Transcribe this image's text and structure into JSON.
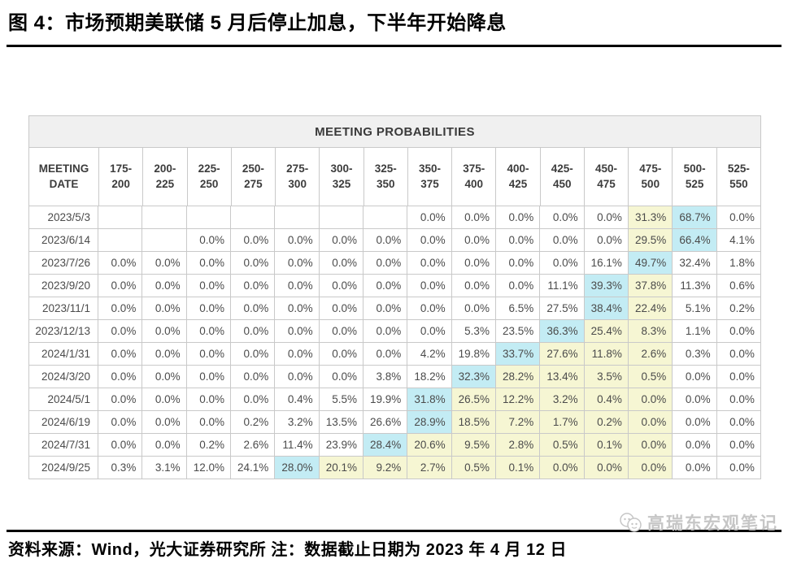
{
  "page": {
    "title": "图 4：市场预期美联储 5 月后停止加息，下半年开始降息",
    "footer": "资料来源：Wind，光大证券研究所 注：数据截止日期为 2023 年 4 月 12 日",
    "watermark": "高瑞东宏观笔记"
  },
  "colors": {
    "blue_highlight": "#c3ecf4",
    "yellow_highlight": "#f6f6d3",
    "table_title_bg": "#f0f0f0",
    "grid_line": "#c9c9c9"
  },
  "chart_data": {
    "type": "table",
    "title": "MEETING PROBABILITIES",
    "columns": [
      "MEETING DATE",
      "175-200",
      "200-225",
      "225-250",
      "250-275",
      "275-300",
      "300-325",
      "325-350",
      "350-375",
      "375-400",
      "400-425",
      "425-450",
      "450-475",
      "475-500",
      "500-525",
      "525-550"
    ],
    "highlight_legend": {
      "blue": "#c3ecf4",
      "yellow": "#f6f6d3"
    },
    "rows": [
      {
        "date": "2023/5/3",
        "values": [
          "",
          "",
          "",
          "",
          "",
          "",
          "",
          "0.0%",
          "0.0%",
          "0.0%",
          "0.0%",
          "0.0%",
          "31.3%",
          "68.7%",
          "0.0%"
        ],
        "blue": 13,
        "yellow": [
          12
        ]
      },
      {
        "date": "2023/6/14",
        "values": [
          "",
          "",
          "0.0%",
          "0.0%",
          "0.0%",
          "0.0%",
          "0.0%",
          "0.0%",
          "0.0%",
          "0.0%",
          "0.0%",
          "0.0%",
          "29.5%",
          "66.4%",
          "4.1%"
        ],
        "blue": 13,
        "yellow": [
          12
        ]
      },
      {
        "date": "2023/7/26",
        "values": [
          "0.0%",
          "0.0%",
          "0.0%",
          "0.0%",
          "0.0%",
          "0.0%",
          "0.0%",
          "0.0%",
          "0.0%",
          "0.0%",
          "0.0%",
          "16.1%",
          "49.7%",
          "32.4%",
          "1.8%"
        ],
        "blue": 12,
        "yellow": []
      },
      {
        "date": "2023/9/20",
        "values": [
          "0.0%",
          "0.0%",
          "0.0%",
          "0.0%",
          "0.0%",
          "0.0%",
          "0.0%",
          "0.0%",
          "0.0%",
          "0.0%",
          "11.1%",
          "39.3%",
          "37.8%",
          "11.3%",
          "0.6%"
        ],
        "blue": 11,
        "yellow": [
          12
        ]
      },
      {
        "date": "2023/11/1",
        "values": [
          "0.0%",
          "0.0%",
          "0.0%",
          "0.0%",
          "0.0%",
          "0.0%",
          "0.0%",
          "0.0%",
          "0.0%",
          "6.5%",
          "27.5%",
          "38.4%",
          "22.4%",
          "5.1%",
          "0.2%"
        ],
        "blue": 11,
        "yellow": [
          12
        ]
      },
      {
        "date": "2023/12/13",
        "values": [
          "0.0%",
          "0.0%",
          "0.0%",
          "0.0%",
          "0.0%",
          "0.0%",
          "0.0%",
          "0.0%",
          "5.3%",
          "23.5%",
          "36.3%",
          "25.4%",
          "8.3%",
          "1.1%",
          "0.0%"
        ],
        "blue": 10,
        "yellow": [
          11,
          12
        ]
      },
      {
        "date": "2024/1/31",
        "values": [
          "0.0%",
          "0.0%",
          "0.0%",
          "0.0%",
          "0.0%",
          "0.0%",
          "0.0%",
          "4.2%",
          "19.8%",
          "33.7%",
          "27.6%",
          "11.8%",
          "2.6%",
          "0.3%",
          "0.0%"
        ],
        "blue": 9,
        "yellow": [
          10,
          11,
          12
        ]
      },
      {
        "date": "2024/3/20",
        "values": [
          "0.0%",
          "0.0%",
          "0.0%",
          "0.0%",
          "0.0%",
          "0.0%",
          "3.8%",
          "18.2%",
          "32.3%",
          "28.2%",
          "13.4%",
          "3.5%",
          "0.5%",
          "0.0%",
          "0.0%"
        ],
        "blue": 8,
        "yellow": [
          9,
          10,
          11,
          12
        ]
      },
      {
        "date": "2024/5/1",
        "values": [
          "0.0%",
          "0.0%",
          "0.0%",
          "0.0%",
          "0.4%",
          "5.5%",
          "19.9%",
          "31.8%",
          "26.5%",
          "12.2%",
          "3.2%",
          "0.4%",
          "0.0%",
          "0.0%",
          "0.0%"
        ],
        "blue": 7,
        "yellow": [
          8,
          9,
          10,
          11,
          12
        ]
      },
      {
        "date": "2024/6/19",
        "values": [
          "0.0%",
          "0.0%",
          "0.0%",
          "0.2%",
          "3.2%",
          "13.5%",
          "26.6%",
          "28.9%",
          "18.5%",
          "7.2%",
          "1.7%",
          "0.2%",
          "0.0%",
          "0.0%",
          "0.0%"
        ],
        "blue": 7,
        "yellow": [
          8,
          9,
          10,
          11,
          12
        ]
      },
      {
        "date": "2024/7/31",
        "values": [
          "0.0%",
          "0.0%",
          "0.2%",
          "2.6%",
          "11.4%",
          "23.9%",
          "28.4%",
          "20.6%",
          "9.5%",
          "2.8%",
          "0.5%",
          "0.1%",
          "0.0%",
          "0.0%",
          "0.0%"
        ],
        "blue": 6,
        "yellow": [
          7,
          8,
          9,
          10,
          11,
          12
        ]
      },
      {
        "date": "2024/9/25",
        "values": [
          "0.3%",
          "3.1%",
          "12.0%",
          "24.1%",
          "28.0%",
          "20.1%",
          "9.2%",
          "2.7%",
          "0.5%",
          "0.1%",
          "0.0%",
          "0.0%",
          "0.0%",
          "0.0%",
          "0.0%"
        ],
        "blue": 4,
        "yellow": [
          5,
          6,
          7,
          8,
          9,
          10,
          11,
          12
        ]
      }
    ]
  }
}
